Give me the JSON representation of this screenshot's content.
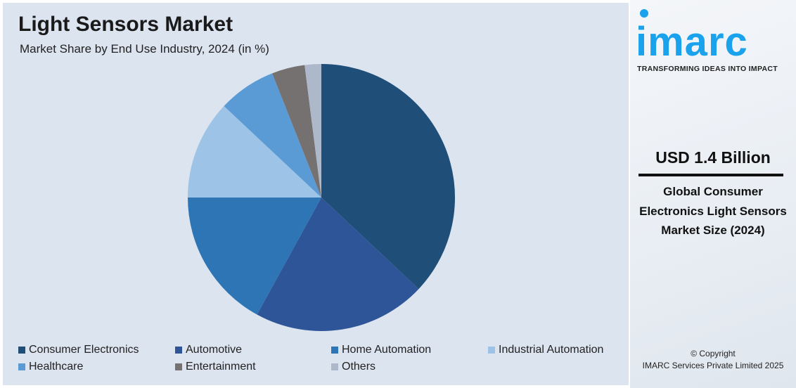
{
  "chart_data": {
    "type": "pie",
    "title": "Light Sensors Market",
    "subtitle": "Market Share by End Use Industry, 2024 (in %)",
    "categories": [
      "Consumer Electronics",
      "Automotive",
      "Home Automation",
      "Industrial Automation",
      "Healthcare",
      "Entertainment",
      "Others"
    ],
    "values": [
      37,
      21,
      17,
      12,
      7,
      4,
      2
    ],
    "colors": [
      "#1f4e79",
      "#2e5597",
      "#2e75b6",
      "#9dc3e6",
      "#5b9bd5",
      "#767171",
      "#adb9ca"
    ],
    "legend_placement": "bottom"
  },
  "side": {
    "logo": "imarc",
    "tagline": "TRANSFORMING IDEAS INTO IMPACT",
    "value": "USD 1.4 Billion",
    "description": "Global Consumer Electronics Light Sensors Market Size (2024)",
    "copyright": "© Copyright",
    "company": "IMARC Services Private Limited 2025",
    "logo_color": "#1aa3ec"
  }
}
